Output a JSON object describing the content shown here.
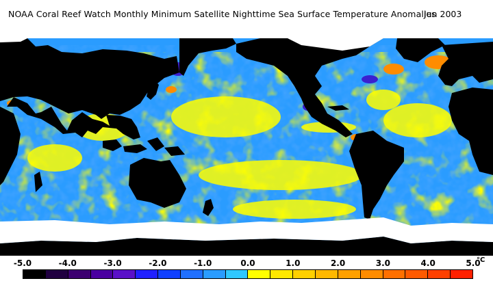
{
  "header": {
    "title": "NOAA Coral Reef Watch Monthly Minimum Satellite Nighttime Sea Surface Temperature Anomalies",
    "date": "Jun 2003"
  },
  "legend": {
    "ticks": [
      "-5.0",
      "-4.0",
      "-3.0",
      "-2.0",
      "-1.0",
      "0.0",
      "1.0",
      "2.0",
      "3.0",
      "4.0",
      "5.0"
    ],
    "unit": "°C",
    "colors": [
      "#000000",
      "#200040",
      "#3c0070",
      "#4a00a0",
      "#5a10c8",
      "#2020ff",
      "#1040ff",
      "#2070ff",
      "#2a9cff",
      "#30c8ff",
      "#ffff00",
      "#ffe800",
      "#ffd000",
      "#ffb800",
      "#ffa000",
      "#ff8c00",
      "#ff7000",
      "#ff5a00",
      "#ff4000",
      "#ff2000"
    ]
  },
  "map": {
    "land_color": "#000000",
    "ice_color": "#ffffff",
    "ocean_base": "#2a9cff",
    "warm_color": "#ffff00",
    "hot_color": "#ff8c00",
    "cold_color": "#3a20d0"
  }
}
